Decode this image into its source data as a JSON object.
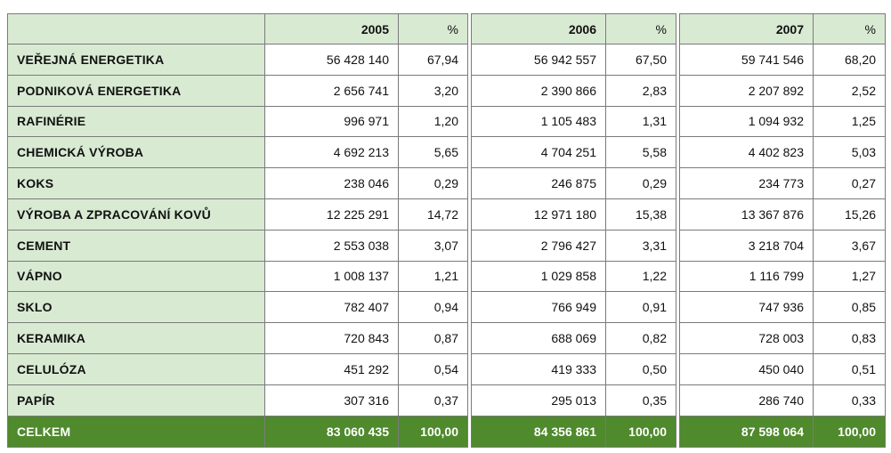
{
  "header": {
    "col_2005": "2005",
    "pct_2005": "%",
    "col_2006": "2006",
    "pct_2006": "%",
    "col_2007": "2007",
    "pct_2007": "%"
  },
  "rows": [
    {
      "label": "VEŘEJNÁ ENERGETIKA",
      "v2005": "56 428 140",
      "p2005": "67,94",
      "v2006": "56 942 557",
      "p2006": "67,50",
      "v2007": "59 741 546",
      "p2007": "68,20"
    },
    {
      "label": "PODNIKOVÁ ENERGETIKA",
      "v2005": "2 656 741",
      "p2005": "3,20",
      "v2006": "2 390 866",
      "p2006": "2,83",
      "v2007": "2 207 892",
      "p2007": "2,52"
    },
    {
      "label": "RAFINÉRIE",
      "v2005": "996 971",
      "p2005": "1,20",
      "v2006": "1 105 483",
      "p2006": "1,31",
      "v2007": "1 094 932",
      "p2007": "1,25"
    },
    {
      "label": "CHEMICKÁ VÝROBA",
      "v2005": "4 692 213",
      "p2005": "5,65",
      "v2006": "4 704 251",
      "p2006": "5,58",
      "v2007": "4 402 823",
      "p2007": "5,03"
    },
    {
      "label": "KOKS",
      "v2005": "238 046",
      "p2005": "0,29",
      "v2006": "246 875",
      "p2006": "0,29",
      "v2007": "234 773",
      "p2007": "0,27"
    },
    {
      "label": "VÝROBA A ZPRACOVÁNÍ KOVŮ",
      "v2005": "12 225 291",
      "p2005": "14,72",
      "v2006": "12 971 180",
      "p2006": "15,38",
      "v2007": "13 367 876",
      "p2007": "15,26"
    },
    {
      "label": "CEMENT",
      "v2005": "2 553 038",
      "p2005": "3,07",
      "v2006": "2 796 427",
      "p2006": "3,31",
      "v2007": "3 218 704",
      "p2007": "3,67"
    },
    {
      "label": "VÁPNO",
      "v2005": "1 008 137",
      "p2005": "1,21",
      "v2006": "1 029 858",
      "p2006": "1,22",
      "v2007": "1 116 799",
      "p2007": "1,27"
    },
    {
      "label": "SKLO",
      "v2005": "782 407",
      "p2005": "0,94",
      "v2006": "766 949",
      "p2006": "0,91",
      "v2007": "747 936",
      "p2007": "0,85"
    },
    {
      "label": "KERAMIKA",
      "v2005": "720 843",
      "p2005": "0,87",
      "v2006": "688 069",
      "p2006": "0,82",
      "v2007": "728 003",
      "p2007": "0,83"
    },
    {
      "label": "CELULÓZA",
      "v2005": "451 292",
      "p2005": "0,54",
      "v2006": "419 333",
      "p2006": "0,50",
      "v2007": "450 040",
      "p2007": "0,51"
    },
    {
      "label": "PAPÍR",
      "v2005": "307 316",
      "p2005": "0,37",
      "v2006": "295 013",
      "p2006": "0,35",
      "v2007": "286 740",
      "p2007": "0,33"
    }
  ],
  "total": {
    "label": "CELKEM",
    "v2005": "83 060 435",
    "p2005": "100,00",
    "v2006": "84 356 861",
    "p2006": "100,00",
    "v2007": "87 598 064",
    "p2007": "100,00"
  },
  "colors": {
    "label_background": "#d9ead3",
    "total_background": "#4f8a2c",
    "total_text": "#ffffff",
    "border": "#7a7a7a"
  }
}
